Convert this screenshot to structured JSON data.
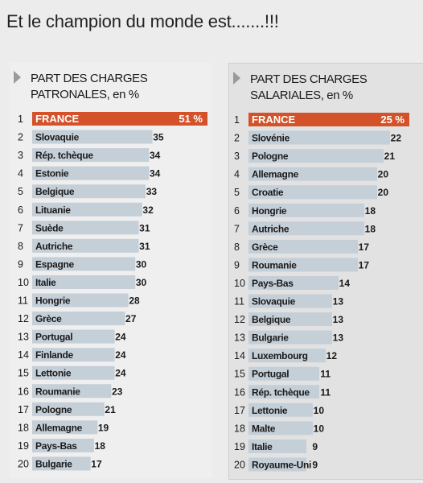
{
  "headline": "Et le champion du monde est.......!!!",
  "colors": {
    "bar": "#c5cfd8",
    "highlight": "#d4522a",
    "highlight_text": "#ffffff",
    "marker": "#9a9a9a"
  },
  "chart_data": [
    {
      "type": "bar",
      "orientation": "horizontal",
      "title_line1": "PART DES CHARGES",
      "title_line2": "PATRONALES, en %",
      "value_suffix": " %",
      "highlight_rank": 1,
      "rows": [
        {
          "rank": "1",
          "country": "FRANCE",
          "value": 51
        },
        {
          "rank": "2",
          "country": "Slovaquie",
          "value": 35
        },
        {
          "rank": "3",
          "country": "Rép. tchèque",
          "value": 34
        },
        {
          "rank": "4",
          "country": "Estonie",
          "value": 34
        },
        {
          "rank": "5",
          "country": "Belgique",
          "value": 33
        },
        {
          "rank": "6",
          "country": "Lituanie",
          "value": 32
        },
        {
          "rank": "7",
          "country": "Suède",
          "value": 31
        },
        {
          "rank": "8",
          "country": "Autriche",
          "value": 31
        },
        {
          "rank": "9",
          "country": "Espagne",
          "value": 30
        },
        {
          "rank": "10",
          "country": "Italie",
          "value": 30
        },
        {
          "rank": "11",
          "country": "Hongrie",
          "value": 28
        },
        {
          "rank": "12",
          "country": "Grèce",
          "value": 27
        },
        {
          "rank": "13",
          "country": "Portugal",
          "value": 24
        },
        {
          "rank": "14",
          "country": "Finlande",
          "value": 24
        },
        {
          "rank": "15",
          "country": "Lettonie",
          "value": 24
        },
        {
          "rank": "16",
          "country": "Roumanie",
          "value": 23
        },
        {
          "rank": "17",
          "country": "Pologne",
          "value": 21
        },
        {
          "rank": "18",
          "country": "Allemagne",
          "value": 19
        },
        {
          "rank": "19",
          "country": "Pays-Bas",
          "value": 18
        },
        {
          "rank": "20",
          "country": "Bulgarie",
          "value": 17
        }
      ]
    },
    {
      "type": "bar",
      "orientation": "horizontal",
      "title_line1": "PART DES CHARGES",
      "title_line2": "SALARIALES, en %",
      "value_suffix": " %",
      "highlight_rank": 1,
      "rows": [
        {
          "rank": "1",
          "country": "FRANCE",
          "value": 25
        },
        {
          "rank": "2",
          "country": "Slovénie",
          "value": 22
        },
        {
          "rank": "3",
          "country": "Pologne",
          "value": 21
        },
        {
          "rank": "4",
          "country": "Allemagne",
          "value": 20
        },
        {
          "rank": "5",
          "country": "Croatie",
          "value": 20
        },
        {
          "rank": "6",
          "country": "Hongrie",
          "value": 18
        },
        {
          "rank": "7",
          "country": "Autriche",
          "value": 18
        },
        {
          "rank": "8",
          "country": "Grèce",
          "value": 17
        },
        {
          "rank": "9",
          "country": "Roumanie",
          "value": 17
        },
        {
          "rank": "10",
          "country": "Pays-Bas",
          "value": 14
        },
        {
          "rank": "11",
          "country": "Slovaquie",
          "value": 13
        },
        {
          "rank": "12",
          "country": "Belgique",
          "value": 13
        },
        {
          "rank": "13",
          "country": "Bulgarie",
          "value": 13
        },
        {
          "rank": "14",
          "country": "Luxembourg",
          "value": 12
        },
        {
          "rank": "15",
          "country": "Portugal",
          "value": 11
        },
        {
          "rank": "16",
          "country": "Rép. tchèque",
          "value": 11
        },
        {
          "rank": "17",
          "country": "Lettonie",
          "value": 10
        },
        {
          "rank": "18",
          "country": "Malte",
          "value": 10
        },
        {
          "rank": "19",
          "country": "Italie",
          "value": 9
        },
        {
          "rank": "20",
          "country": "Royaume-Uni",
          "value": 9
        }
      ]
    }
  ]
}
